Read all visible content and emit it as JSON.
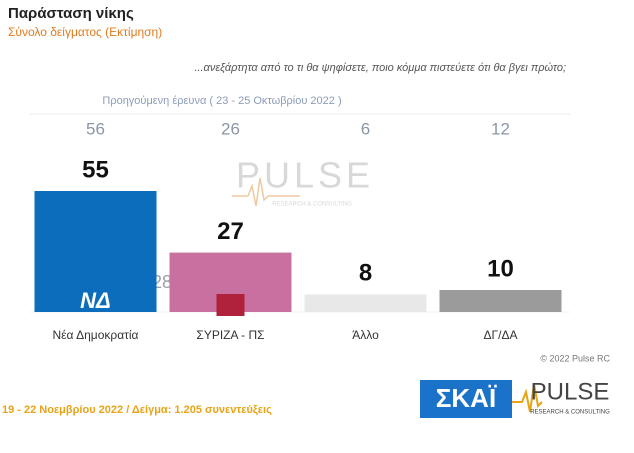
{
  "chart_data": {
    "type": "bar",
    "title": "Παράσταση νίκης",
    "subtitle": "Σύνολο δείγματος  (Εκτίμηση)",
    "question": "...ανεξάρτητα από το τι θα ψηφίσετε, ποιο κόμμα πιστεύετε ότι θα βγει πρώτο;",
    "previous_label": "Προηγούμενη έρευνα  ( 23 - 25 Οκτωβρίου  2022 )",
    "previous_values": [
      56,
      26,
      6,
      12
    ],
    "categories": [
      "Νέα Δημοκρατία",
      "ΣΥΡΙΖΑ - ΠΣ",
      "Άλλο",
      "ΔΓ/ΔΑ"
    ],
    "values": [
      55,
      27,
      8,
      10
    ],
    "colors": [
      "#0b6dbb",
      "#c8709f",
      "#e8e8e8",
      "#9b9b9b"
    ],
    "annotation": "28",
    "footer": "19 - 22  Νοεμβρίου  2022  /  Δείγμα:  1.205 συνεντεύξεις",
    "copyright": "© 2022 Pulse RC",
    "logos": {
      "party_1": "ΝΔ",
      "broadcaster": "ΣΚΑΪ",
      "pollster": "PULSE",
      "pollster_tagline": "RESEARCH & CONSULTING"
    }
  }
}
